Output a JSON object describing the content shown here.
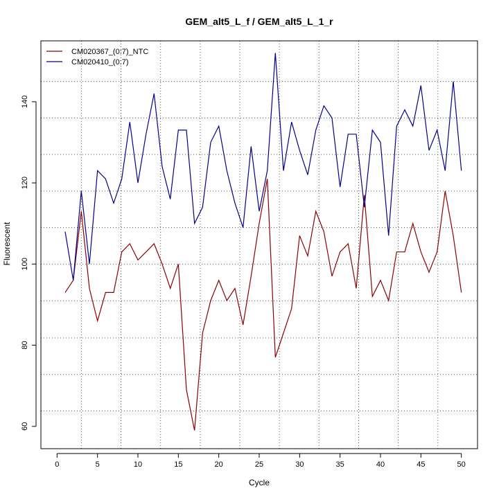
{
  "chart_data": {
    "type": "line",
    "title": "GEM_alt5_L_f / GEM_alt5_L_1_r",
    "xlabel": "Cycle",
    "ylabel": "Fluorescent",
    "xlim": [
      -2,
      52
    ],
    "ylim": [
      54.5,
      155
    ],
    "x_ticks": [
      0,
      5,
      10,
      15,
      20,
      25,
      30,
      35,
      40,
      45,
      50
    ],
    "y_ticks": [
      60,
      80,
      100,
      120,
      140
    ],
    "grid": {
      "horizontal": [
        63.8,
        72.8,
        81.8,
        90.9,
        100,
        109,
        118,
        127,
        136,
        145
      ],
      "vertical": [
        3,
        7.9,
        12.8,
        17.7,
        22.6,
        27.5,
        32.4,
        37.3,
        42.2,
        47.1
      ]
    },
    "legend_position": "top-left",
    "x": [
      1,
      2,
      3,
      4,
      5,
      6,
      7,
      8,
      9,
      10,
      11,
      12,
      13,
      14,
      15,
      16,
      17,
      18,
      19,
      20,
      21,
      22,
      23,
      24,
      25,
      26,
      27,
      28,
      29,
      30,
      31,
      32,
      33,
      34,
      35,
      36,
      37,
      38,
      39,
      40,
      41,
      42,
      43,
      44,
      45,
      46,
      47,
      48,
      49,
      50
    ],
    "series": [
      {
        "name": "CM020367_(0:7)_NTC",
        "color": "#8b0000",
        "values": [
          93,
          96,
          113,
          94,
          86,
          93,
          93,
          103,
          105,
          101,
          103,
          105,
          100,
          94,
          100,
          69,
          59,
          83,
          91,
          96,
          91,
          94,
          85,
          97,
          110,
          121,
          77,
          83,
          89,
          107,
          102,
          113,
          108,
          97,
          103,
          105,
          94,
          117,
          92,
          96,
          91,
          103,
          103,
          110,
          103,
          98,
          103,
          118,
          107,
          93
        ]
      },
      {
        "name": "CM020410_(0:7)",
        "color": "#00008b",
        "values": [
          108,
          96,
          118,
          100,
          123,
          121,
          115,
          121,
          135,
          120,
          132,
          142,
          124,
          116,
          133,
          133,
          110,
          114,
          130,
          134,
          123,
          115,
          109,
          129,
          113,
          123,
          152,
          123,
          135,
          128,
          122,
          133,
          139,
          136,
          119,
          132,
          132,
          114,
          133,
          130,
          107,
          134,
          138,
          134,
          144,
          128,
          133,
          123,
          145,
          123
        ]
      }
    ]
  }
}
